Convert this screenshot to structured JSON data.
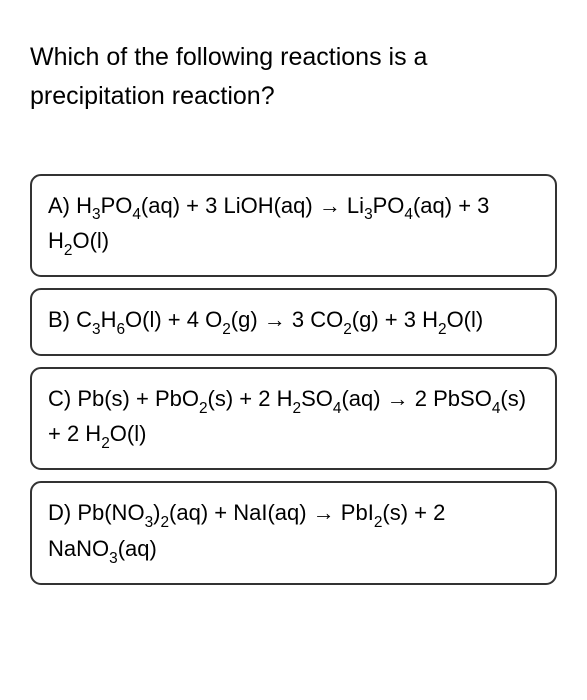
{
  "question": {
    "text": "Which of the following reactions is a precipitation reaction?",
    "font_size": 25,
    "color": "#000000"
  },
  "options": [
    {
      "label": "A",
      "parts": [
        {
          "t": "A) H"
        },
        {
          "t": "3",
          "sub": true
        },
        {
          "t": "PO"
        },
        {
          "t": "4",
          "sub": true
        },
        {
          "t": "(aq) + 3 LiOH(aq) → Li"
        },
        {
          "t": "3",
          "sub": true
        },
        {
          "t": "PO"
        },
        {
          "t": "4",
          "sub": true
        },
        {
          "t": "(aq) + 3 H"
        },
        {
          "t": "2",
          "sub": true
        },
        {
          "t": "O(l)"
        }
      ]
    },
    {
      "label": "B",
      "parts": [
        {
          "t": "B) C"
        },
        {
          "t": "3",
          "sub": true
        },
        {
          "t": "H"
        },
        {
          "t": "6",
          "sub": true
        },
        {
          "t": "O(l) + 4 O"
        },
        {
          "t": "2",
          "sub": true
        },
        {
          "t": "(g) → 3 CO"
        },
        {
          "t": "2",
          "sub": true
        },
        {
          "t": "(g) + 3 H"
        },
        {
          "t": "2",
          "sub": true
        },
        {
          "t": "O(l)"
        }
      ]
    },
    {
      "label": "C",
      "parts": [
        {
          "t": "C) Pb(s) + PbO"
        },
        {
          "t": "2",
          "sub": true
        },
        {
          "t": "(s) + 2 H"
        },
        {
          "t": "2",
          "sub": true
        },
        {
          "t": "SO"
        },
        {
          "t": "4",
          "sub": true
        },
        {
          "t": "(aq) → 2 PbSO"
        },
        {
          "t": "4",
          "sub": true
        },
        {
          "t": "(s) + 2 H"
        },
        {
          "t": "2",
          "sub": true
        },
        {
          "t": "O(l)"
        }
      ]
    },
    {
      "label": "D",
      "parts": [
        {
          "t": "D) Pb(NO"
        },
        {
          "t": "3",
          "sub": true
        },
        {
          "t": ")"
        },
        {
          "t": "2",
          "sub": true
        },
        {
          "t": "(aq) + NaI(aq) → PbI"
        },
        {
          "t": "2",
          "sub": true
        },
        {
          "t": "(s) + 2 NaNO"
        },
        {
          "t": "3",
          "sub": true
        },
        {
          "t": "(aq)"
        }
      ]
    }
  ],
  "styling": {
    "option_border_color": "#333333",
    "option_border_radius": 11,
    "option_font_size": 22,
    "background_color": "#ffffff",
    "gap": 11
  }
}
